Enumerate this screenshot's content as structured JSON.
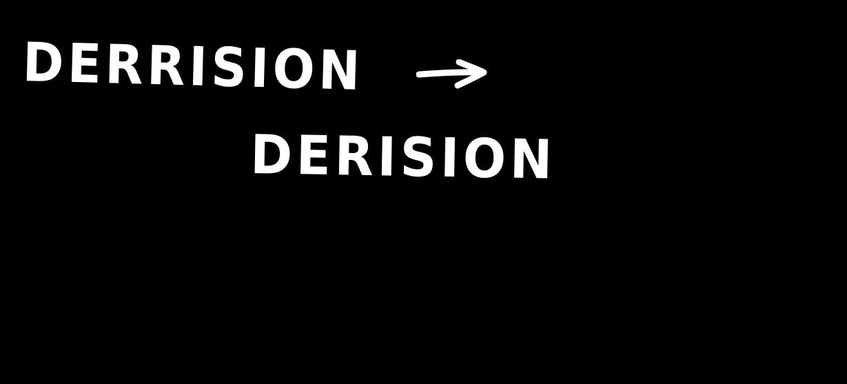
{
  "handwriting": {
    "line1": "DERRISION",
    "line2": "DERISION",
    "arrow_icon": "arrow-right-icon"
  },
  "colors": {
    "background": "#000000",
    "ink": "#ffffff"
  }
}
